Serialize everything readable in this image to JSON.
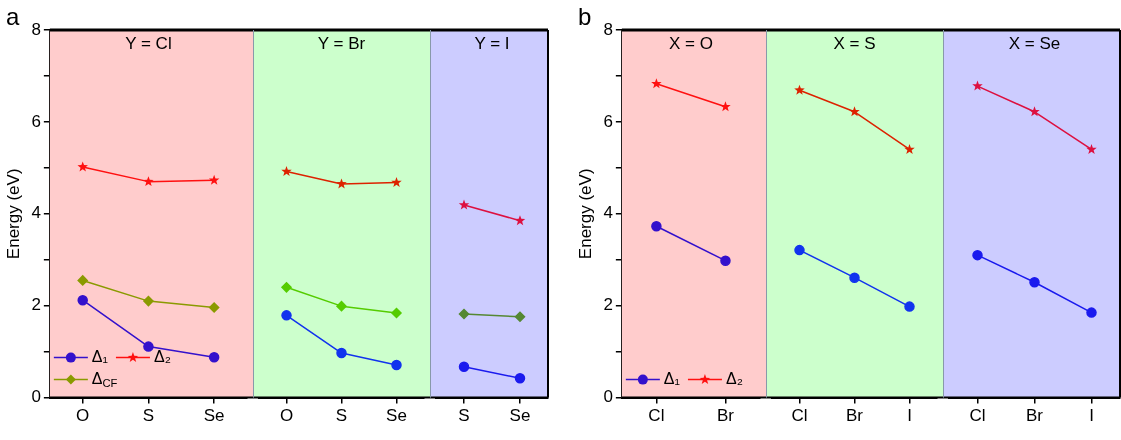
{
  "chart_data": [
    {
      "type": "line",
      "title": "a",
      "ylabel": "Energy (eV)",
      "ylim": [
        0,
        8
      ],
      "categories": [
        "O",
        "S",
        "Se"
      ],
      "yticks": [
        0,
        {
          "value": 1,
          "label": null
        },
        2,
        {
          "value": 3,
          "label": null
        },
        4,
        {
          "value": 5,
          "label": null
        },
        6,
        {
          "value": 7,
          "label": null
        },
        8
      ],
      "bands": [
        {
          "axis": "x",
          "from": "O",
          "to": "Se",
          "label": "Y = Cl",
          "color": "#ffcccc"
        }
      ],
      "grid": false,
      "legend": "bottom left",
      "series": [
        {
          "name": "Δ₁",
          "color": "#3311cc",
          "marker": "circle",
          "values": [
            2.12,
            1.11,
            0.88
          ]
        },
        {
          "name": "Δ₂",
          "color": "#ff1010",
          "marker": "star",
          "values": [
            5.02,
            4.7,
            4.73
          ]
        },
        {
          "name": "Δ$_{CF}$",
          "color": "#8a9a00",
          "marker": "diamond",
          "values": [
            2.55,
            2.1,
            1.96
          ]
        }
      ]
    },
    {
      "type": "line",
      "ylim": [
        0,
        8
      ],
      "categories": [
        "O",
        "S",
        "Se"
      ],
      "tick_labels": "x",
      "bands": [
        {
          "axis": "x",
          "from": "O",
          "to": "Se",
          "label": "Y = Br",
          "color": "#ccffcc"
        }
      ],
      "grid": false,
      "series": [
        {
          "color": "#1133ee",
          "marker": "circle",
          "values": [
            1.79,
            0.97,
            0.71
          ]
        },
        {
          "color": "#dd2200",
          "marker": "star",
          "values": [
            4.92,
            4.65,
            4.68
          ]
        },
        {
          "color": "#55cc00",
          "marker": "diamond",
          "values": [
            2.4,
            1.99,
            1.84
          ]
        }
      ]
    },
    {
      "type": "line",
      "ylim": [
        0,
        8
      ],
      "categories": [
        "S",
        "Se"
      ],
      "tick_labels": "x",
      "bands": [
        {
          "axis": "x",
          "from": "S",
          "to": "Se",
          "label": "Y = I",
          "color": "#ccccff"
        }
      ],
      "grid": false,
      "series": [
        {
          "color": "#1a1aee",
          "marker": "circle",
          "values": [
            0.67,
            0.42
          ]
        },
        {
          "color": "#dd1040",
          "marker": "star",
          "values": [
            4.19,
            3.85
          ]
        },
        {
          "color": "#558833",
          "marker": "diamond",
          "values": [
            1.82,
            1.76
          ]
        }
      ]
    },
    {
      "type": "line",
      "title": "b",
      "ylabel": "Energy (eV)",
      "ylim": [
        0,
        8
      ],
      "categories": [
        "Cl",
        "Br"
      ],
      "yticks": [
        0,
        {
          "value": 1,
          "label": null
        },
        2,
        {
          "value": 3,
          "label": null
        },
        4,
        {
          "value": 5,
          "label": null
        },
        6,
        {
          "value": 7,
          "label": null
        },
        8
      ],
      "bands": [
        {
          "axis": "x",
          "from": "Cl",
          "to": "Br",
          "label": "X = O",
          "color": "#ffcccc"
        }
      ],
      "grid": false,
      "legend": "bottom left",
      "series": [
        {
          "name": "Δ₁",
          "color": "#3311cc",
          "marker": "circle",
          "values": [
            3.73,
            2.98
          ]
        },
        {
          "name": "Δ₂",
          "color": "#ff1010",
          "marker": "star",
          "values": [
            6.83,
            6.33
          ]
        }
      ]
    },
    {
      "type": "line",
      "ylim": [
        0,
        8
      ],
      "categories": [
        "Cl",
        "Br",
        "I"
      ],
      "tick_labels": "x",
      "bands": [
        {
          "axis": "x",
          "from": "Cl",
          "to": "I",
          "label": "X = S",
          "color": "#ccffcc"
        }
      ],
      "grid": false,
      "series": [
        {
          "color": "#1133ee",
          "marker": "circle",
          "values": [
            3.21,
            2.61,
            1.98
          ]
        },
        {
          "color": "#dd2200",
          "marker": "star",
          "values": [
            6.69,
            6.22,
            5.4
          ]
        }
      ]
    },
    {
      "type": "line",
      "ylim": [
        0,
        8
      ],
      "categories": [
        "Cl",
        "Br",
        "I"
      ],
      "tick_labels": "x",
      "bands": [
        {
          "axis": "x",
          "from": "Cl",
          "to": "I",
          "label": "X = Se",
          "color": "#ccccff"
        }
      ],
      "grid": false,
      "series": [
        {
          "color": "#1a1aee",
          "marker": "circle",
          "values": [
            3.1,
            2.51,
            1.85
          ]
        },
        {
          "color": "#dd1040",
          "marker": "star",
          "values": [
            6.78,
            6.22,
            5.4
          ]
        }
      ]
    }
  ]
}
